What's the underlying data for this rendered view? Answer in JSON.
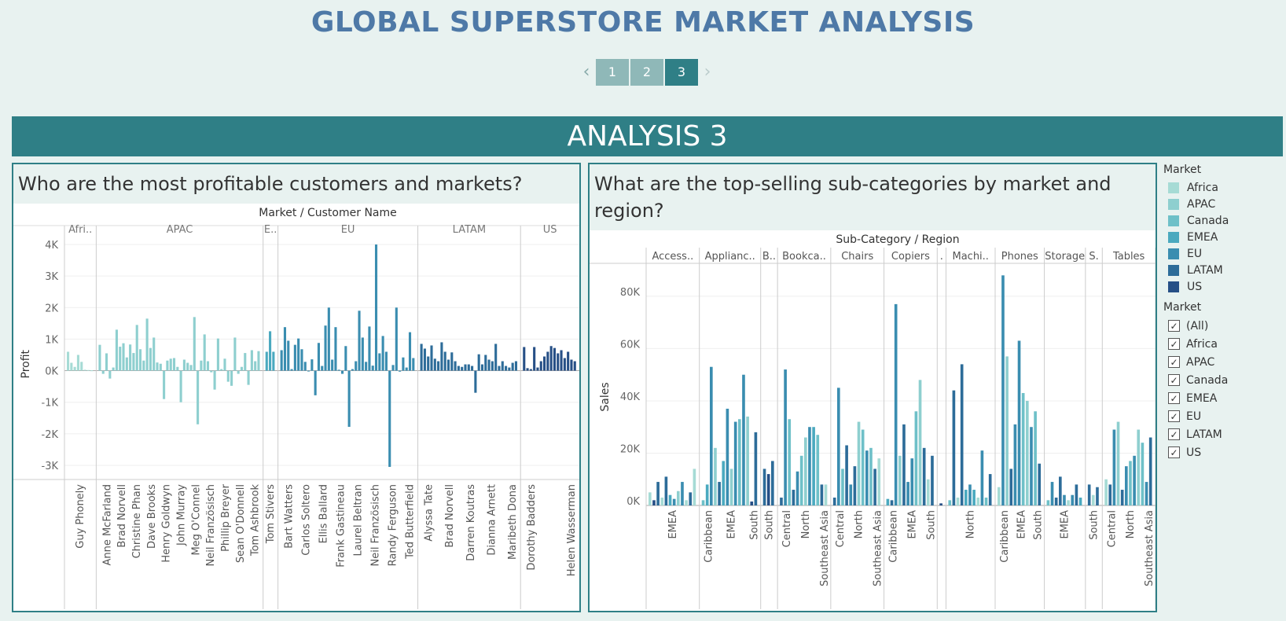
{
  "dashboard_title": "GLOBAL SUPERSTORE MARKET ANALYSIS",
  "pager": {
    "prev_icon": "‹",
    "next_icon": "›",
    "pages": [
      "1",
      "2",
      "3"
    ],
    "active_page": "3"
  },
  "section_title": "ANALYSIS 3",
  "left_question": "Who are the most profitable customers and markets?",
  "right_question": "What are the top-selling sub-categories by market and region?",
  "colors": {
    "Africa": "#a6dbd5",
    "APAC": "#8ecfcf",
    "Canada": "#6ec0c8",
    "EMEA": "#4aa9bf",
    "EU": "#3a8db0",
    "LATAM": "#2d6c99",
    "US": "#264f86"
  },
  "legend": {
    "color_title": "Market",
    "color_items": [
      "Africa",
      "APAC",
      "Canada",
      "EMEA",
      "EU",
      "LATAM",
      "US"
    ],
    "filter_title": "Market",
    "filter_items": [
      "(All)",
      "Africa",
      "APAC",
      "Canada",
      "EMEA",
      "EU",
      "LATAM",
      "US"
    ],
    "check_glyph": "✓"
  },
  "chart_data": [
    {
      "type": "bar",
      "header": "Market / Customer Name",
      "ylabel": "Profit",
      "ylim": [
        -3400,
        4300
      ],
      "yticks": [
        4000,
        3000,
        2000,
        1000,
        0,
        -1000,
        -2000,
        -3000
      ],
      "ytick_labels": [
        "4K",
        "3K",
        "2K",
        "1K",
        "0K",
        "-1K",
        "-2K",
        "-3K"
      ],
      "groups": [
        {
          "label": "Afri..",
          "market": "Africa",
          "values": [
            600,
            250,
            120,
            500,
            280,
            30,
            20,
            10
          ],
          "labels": [
            "Guy Phonely"
          ]
        },
        {
          "label": "APAC",
          "market": "APAC",
          "values": [
            820,
            -100,
            550,
            -250,
            100,
            1300,
            760,
            870,
            420,
            830,
            560,
            1450,
            680,
            320,
            1650,
            720,
            1050,
            260,
            220,
            -900,
            320,
            380,
            400,
            120,
            -1000,
            350,
            250,
            180,
            1700,
            -1700,
            320,
            1150,
            300,
            -50,
            -600,
            1020,
            50,
            380,
            -350,
            -480,
            1050,
            -100,
            120,
            560,
            -450,
            650,
            300,
            620
          ],
          "labels": [
            "Anne McFarland",
            "Brad Norvell",
            "Christine Phan",
            "Dave Brooks",
            "Henry Goldwyn",
            "John Murray",
            "Meg O'Connel",
            "Neil Französisch",
            "Phillip Breyer",
            "Sean O'Donnell",
            "Tom Ashbrook"
          ]
        },
        {
          "label": "E..",
          "market": "EMEA",
          "values": [
            600,
            1250,
            600
          ],
          "labels": [
            "Tom Stivers"
          ]
        },
        {
          "label": "EU",
          "market": "EU",
          "values": [
            650,
            1380,
            950,
            50,
            820,
            1020,
            680,
            280,
            -20,
            360,
            -780,
            880,
            150,
            1430,
            2000,
            350,
            1380,
            30,
            -100,
            780,
            -1780,
            50,
            300,
            1900,
            1050,
            280,
            1400,
            160,
            4000,
            550,
            1100,
            600,
            -3050,
            180,
            2000,
            -30,
            420,
            100,
            1220,
            400
          ],
          "labels": [
            "Bart Watters",
            "Carlos Soltero",
            "Ellis Ballard",
            "Frank Gastineau",
            "Laurel Beltran",
            "Neil Französisch",
            "Randy Ferguson",
            "Ted Butterfield"
          ]
        },
        {
          "label": "LATAM",
          "market": "LATAM",
          "values": [
            850,
            700,
            450,
            800,
            380,
            300,
            900,
            600,
            350,
            580,
            300,
            150,
            120,
            200,
            200,
            150,
            -700,
            520,
            200,
            500,
            350,
            300,
            850,
            150,
            300,
            150,
            100,
            250,
            300
          ],
          "labels": [
            "Alyssa Tate",
            "Brad Norvell",
            "Darren Koutras",
            "Dianna Arnett",
            "Maribeth Dona"
          ]
        },
        {
          "label": "US",
          "market": "US",
          "values": [
            750,
            80,
            50,
            750,
            100,
            300,
            450,
            600,
            780,
            720,
            550,
            650,
            400,
            600,
            350,
            300
          ],
          "labels": [
            "Dorothy Badders",
            "Helen Wasserman"
          ]
        }
      ]
    },
    {
      "type": "bar",
      "header": "Sub-Category / Region",
      "ylabel": "Sales",
      "ylim": [
        0,
        92000
      ],
      "yticks": [
        80000,
        60000,
        40000,
        20000,
        0
      ],
      "ytick_labels": [
        "80K",
        "60K",
        "40K",
        "20K",
        "0K"
      ],
      "groups": [
        {
          "label": "Access..",
          "bars": [
            [
              "Africa",
              5000
            ],
            [
              "US",
              2000
            ],
            [
              "LATAM",
              9000
            ],
            [
              "Africa",
              3000
            ],
            [
              "LATAM",
              11000
            ],
            [
              "EMEA",
              4000
            ],
            [
              "EU",
              2500
            ],
            [
              "APAC",
              5500
            ],
            [
              "EU",
              9000
            ],
            [
              "Africa",
              2000
            ],
            [
              "LATAM",
              5000
            ],
            [
              "Africa",
              14000
            ]
          ],
          "labels": [
            "EMEA"
          ]
        },
        {
          "label": "Applianc..",
          "bars": [
            [
              "Canada",
              2000
            ],
            [
              "EMEA",
              8000
            ],
            [
              "EU",
              53000
            ],
            [
              "APAC",
              22000
            ],
            [
              "LATAM",
              9000
            ],
            [
              "EMEA",
              17000
            ],
            [
              "EU",
              37000
            ],
            [
              "APAC",
              14000
            ],
            [
              "EU",
              32000
            ],
            [
              "Canada",
              33000
            ],
            [
              "EU",
              50000
            ],
            [
              "APAC",
              34000
            ],
            [
              "US",
              1500
            ],
            [
              "LATAM",
              28000
            ]
          ],
          "labels": [
            "Caribbean",
            "EMEA",
            "South"
          ]
        },
        {
          "label": "B..",
          "bars": [
            [
              "LATAM",
              14000
            ],
            [
              "US",
              12000
            ],
            [
              "LATAM",
              17000
            ]
          ],
          "labels": [
            "South"
          ]
        },
        {
          "label": "Bookca..",
          "bars": [
            [
              "LATAM",
              3000
            ],
            [
              "EU",
              52000
            ],
            [
              "Canada",
              33000
            ],
            [
              "LATAM",
              6000
            ],
            [
              "EU",
              13000
            ],
            [
              "Canada",
              19000
            ],
            [
              "APAC",
              26000
            ],
            [
              "EU",
              30000
            ],
            [
              "EMEA",
              30000
            ],
            [
              "Canada",
              27000
            ],
            [
              "LATAM",
              8000
            ],
            [
              "Africa",
              8000
            ]
          ],
          "labels": [
            "Central",
            "North",
            "Southeast Asia"
          ]
        },
        {
          "label": "Chairs",
          "bars": [
            [
              "LATAM",
              3000
            ],
            [
              "EU",
              45000
            ],
            [
              "Canada",
              14000
            ],
            [
              "LATAM",
              23000
            ],
            [
              "EU",
              8000
            ],
            [
              "LATAM",
              15000
            ],
            [
              "APAC",
              32000
            ],
            [
              "Canada",
              29000
            ],
            [
              "EU",
              21000
            ],
            [
              "Canada",
              22000
            ],
            [
              "LATAM",
              14000
            ],
            [
              "Africa",
              18000
            ]
          ],
          "labels": [
            "Central",
            "North",
            "Southeast Asia"
          ]
        },
        {
          "label": "Copiers",
          "bars": [
            [
              "EMEA",
              2500
            ],
            [
              "LATAM",
              2000
            ],
            [
              "EU",
              77000
            ],
            [
              "APAC",
              19000
            ],
            [
              "LATAM",
              31000
            ],
            [
              "EU",
              9000
            ],
            [
              "EU",
              18000
            ],
            [
              "Canada",
              36000
            ],
            [
              "APAC",
              48000
            ],
            [
              "LATAM",
              22000
            ],
            [
              "Africa",
              10000
            ],
            [
              "LATAM",
              19000
            ]
          ],
          "labels": [
            "Caribbean",
            "EMEA",
            "South"
          ]
        },
        {
          "label": ".",
          "bars": [
            [
              "US",
              800
            ]
          ],
          "labels": []
        },
        {
          "label": "Machi..",
          "bars": [
            [
              "Canada",
              2000
            ],
            [
              "LATAM",
              44000
            ],
            [
              "Africa",
              3000
            ],
            [
              "LATAM",
              54000
            ],
            [
              "EMEA",
              6000
            ],
            [
              "EU",
              8000
            ],
            [
              "EMEA",
              6000
            ],
            [
              "Africa",
              3000
            ],
            [
              "EU",
              21000
            ],
            [
              "Canada",
              3000
            ],
            [
              "LATAM",
              12000
            ]
          ],
          "labels": [
            "North"
          ]
        },
        {
          "label": "Phones",
          "bars": [
            [
              "Africa",
              7000
            ],
            [
              "EU",
              88000
            ],
            [
              "APAC",
              57000
            ],
            [
              "LATAM",
              14000
            ],
            [
              "EU",
              31000
            ],
            [
              "EU",
              63000
            ],
            [
              "Canada",
              43000
            ],
            [
              "APAC",
              40000
            ],
            [
              "EU",
              30000
            ],
            [
              "Canada",
              36000
            ],
            [
              "LATAM",
              16000
            ]
          ],
          "labels": [
            "Caribbean",
            "EMEA",
            "South"
          ]
        },
        {
          "label": "Storage",
          "bars": [
            [
              "Canada",
              2000
            ],
            [
              "EU",
              9000
            ],
            [
              "LATAM",
              3000
            ],
            [
              "LATAM",
              11000
            ],
            [
              "EU",
              4000
            ],
            [
              "Africa",
              2000
            ],
            [
              "EU",
              4000
            ],
            [
              "LATAM",
              8000
            ],
            [
              "EMEA",
              3000
            ]
          ],
          "labels": [
            "EMEA"
          ]
        },
        {
          "label": "S.",
          "bars": [
            [
              "LATAM",
              8000
            ],
            [
              "Africa",
              4000
            ],
            [
              "LATAM",
              7000
            ]
          ],
          "labels": [
            "South"
          ]
        },
        {
          "label": "Tables",
          "bars": [
            [
              "Africa",
              10000
            ],
            [
              "LATAM",
              8000
            ],
            [
              "EU",
              29000
            ],
            [
              "APAC",
              32000
            ],
            [
              "LATAM",
              6000
            ],
            [
              "EU",
              15000
            ],
            [
              "Canada",
              17000
            ],
            [
              "EU",
              19000
            ],
            [
              "APAC",
              29000
            ],
            [
              "Canada",
              24000
            ],
            [
              "EU",
              9000
            ],
            [
              "LATAM",
              26000
            ]
          ],
          "labels": [
            "Central",
            "North",
            "Southeast Asia"
          ]
        }
      ]
    }
  ]
}
